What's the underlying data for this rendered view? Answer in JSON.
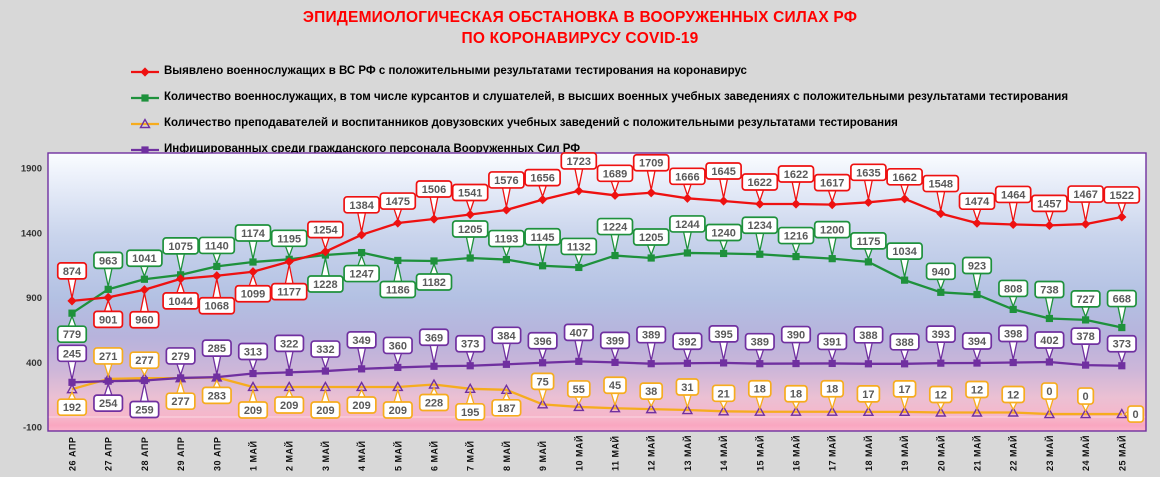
{
  "title": {
    "line1": "ЭПИДЕМИОЛОГИЧЕСКАЯ ОБСТАНОВКА В ВООРУЖЕННЫХ СИЛАХ РФ",
    "line2": "ПО КОРОНАВИРУСУ COVID-19",
    "color": "#FF0000"
  },
  "chart_data": {
    "type": "line",
    "title": "ЭПИДЕМИОЛОГИЧЕСКАЯ ОБСТАНОВКА В ВООРУЖЕННЫХ СИЛАХ РФ ПО КОРОНАВИРУСУ COVID-19",
    "title_lines": [
      "ЭПИДЕМИОЛОГИЧЕСКАЯ ОБСТАНОВКА В ВООРУЖЕННЫХ СИЛАХ РФ",
      "ПО КОРОНАВИРУСУ COVID-19"
    ],
    "categories": [
      "26 АПР",
      "27 АПР",
      "28 АПР",
      "29 АПР",
      "30 АПР",
      "1 МАЙ",
      "2 МАЙ",
      "3 МАЙ",
      "4 МАЙ",
      "5 МАЙ",
      "6 МАЙ",
      "7 МАЙ",
      "8 МАЙ",
      "9 МАЙ",
      "10 МАЙ",
      "11 МАЙ",
      "12 МАЙ",
      "13 МАЙ",
      "14 МАЙ",
      "15 МАЙ",
      "16 МАЙ",
      "17 МАЙ",
      "18 МАЙ",
      "19 МАЙ",
      "20 МАЙ",
      "21 МАЙ",
      "22 МАЙ",
      "23 МАЙ",
      "24 МАЙ",
      "25 МАЙ"
    ],
    "yticks": [
      1900,
      1400,
      900,
      400,
      -100
    ],
    "ylim": [
      -100,
      1900
    ],
    "grid": false,
    "legend_position": "top-left",
    "label_text_color": "#595959",
    "series": [
      {
        "id": "red",
        "name": "Выявлено военнослужащих в ВС РФ с положительными результатами тестирования на коронавирус",
        "color": "#EE1111",
        "marker": "diamond",
        "values": [
          874,
          901,
          960,
          1044,
          1068,
          1099,
          1177,
          1254,
          1384,
          1475,
          1506,
          1541,
          1576,
          1656,
          1723,
          1689,
          1709,
          1666,
          1645,
          1622,
          1622,
          1617,
          1635,
          1662,
          1548,
          1474,
          1464,
          1457,
          1467,
          1522
        ]
      },
      {
        "id": "green",
        "name": "Количество военнослужащих, в том числе курсантов и слушателей, в высших военных учебных заведениях с положительными результатами тестирования",
        "color": "#1E913C",
        "marker": "square",
        "values": [
          779,
          963,
          1041,
          1075,
          1140,
          1174,
          1195,
          1228,
          1247,
          1186,
          1182,
          1205,
          1193,
          1145,
          1132,
          1224,
          1205,
          1244,
          1240,
          1234,
          1216,
          1200,
          1175,
          1034,
          940,
          923,
          808,
          738,
          727,
          668
        ]
      },
      {
        "id": "orange",
        "name": "Количество преподавателей и воспитанников довузовских учебных заведений с положительными результатами тестирования",
        "color": "#F6AC1E",
        "marker": "triangle-open",
        "marker_outline": "#7030A0",
        "values": [
          192,
          271,
          277,
          277,
          283,
          209,
          209,
          209,
          209,
          209,
          228,
          195,
          187,
          75,
          55,
          45,
          38,
          31,
          21,
          18,
          18,
          18,
          17,
          17,
          12,
          12,
          12,
          0,
          0,
          0
        ]
      },
      {
        "id": "purple",
        "name": "Инфицированных среди гражданского персонала Вооруженных Сил РФ",
        "color": "#7030A0",
        "marker": "square",
        "values": [
          245,
          254,
          259,
          279,
          285,
          313,
          322,
          332,
          349,
          360,
          369,
          373,
          384,
          396,
          407,
          399,
          389,
          392,
          395,
          389,
          390,
          391,
          388,
          388,
          393,
          394,
          398,
          402,
          378,
          373
        ]
      }
    ]
  }
}
